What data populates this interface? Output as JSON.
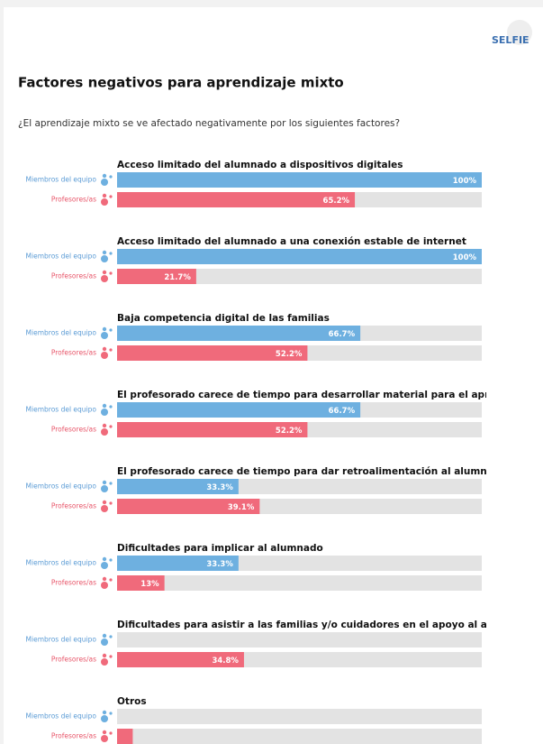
{
  "logo": "SELFIE",
  "chart_data": {
    "type": "bar",
    "orientation": "horizontal",
    "title": "Factores negativos para aprendizaje mixto",
    "subtitle": "¿El aprendizaje mixto se ve afectado negativamente por los siguientes factores?",
    "categories": [
      "Acceso limitado del alumnado a dispositivos digitales",
      "Acceso limitado del alumnado a una conexión estable de internet",
      "Baja competencia digital de las familias",
      "El profesorado carece de tiempo para desarrollar material para el aprendiz",
      "El profesorado carece de tiempo para dar retroalimentación al alumnado",
      "Dificultades para implicar al alumnado",
      "Dificultades para asistir a las familias y/o cuidadores en el apoyo al alumn",
      "Otros"
    ],
    "xlim": [
      0,
      100
    ],
    "series": [
      {
        "name": "Miembros del equipo",
        "color": "#6eb0e0",
        "values": [
          100,
          100,
          66.7,
          66.7,
          33.3,
          33.3,
          0,
          0
        ],
        "value_labels": [
          "100%",
          "100%",
          "66.7%",
          "66.7%",
          "33.3%",
          "33.3%",
          null,
          null
        ]
      },
      {
        "name": "Profesores/as",
        "color": "#f06a7b",
        "values": [
          65.2,
          21.7,
          52.2,
          52.2,
          39.1,
          13,
          34.8,
          4.3
        ],
        "value_labels": [
          "65.2%",
          "21.7%",
          "52.2%",
          "52.2%",
          "39.1%",
          "13%",
          "34.8%",
          null
        ]
      }
    ]
  }
}
